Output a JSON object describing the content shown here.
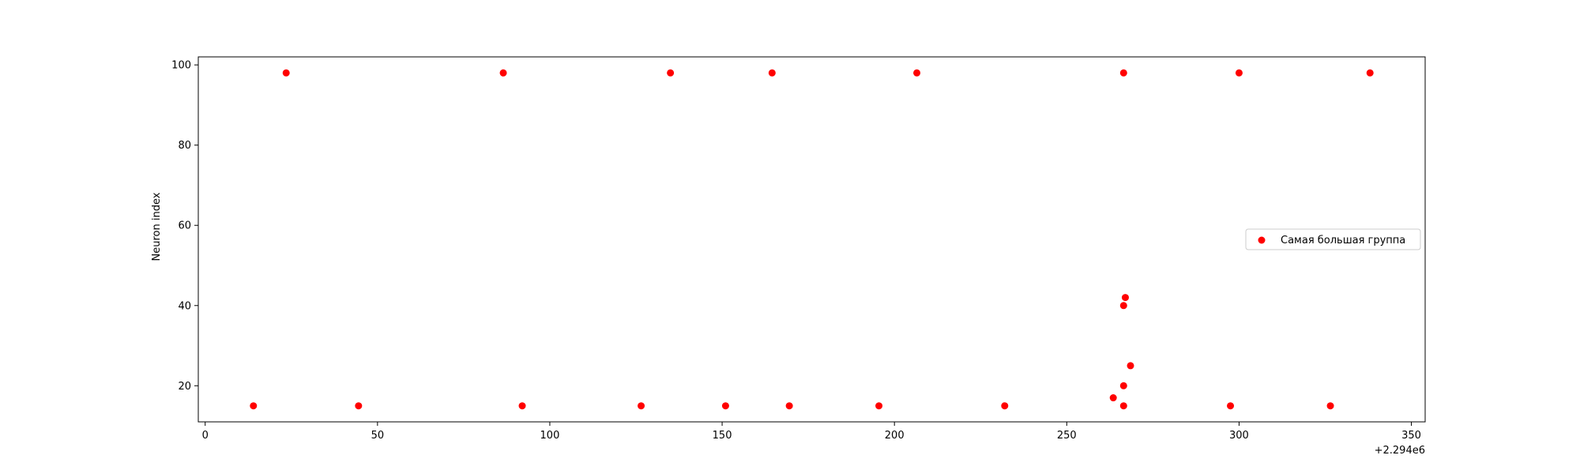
{
  "chart_data": {
    "type": "scatter",
    "title": "",
    "xlabel": "",
    "ylabel": "Neuron index",
    "x_offset_label": "+2.294e6",
    "xlim": [
      -2,
      354
    ],
    "ylim": [
      11,
      102
    ],
    "xticks": [
      0,
      50,
      100,
      150,
      200,
      250,
      300,
      350
    ],
    "yticks": [
      20,
      40,
      60,
      80,
      100
    ],
    "grid": false,
    "legend_position": "center-right",
    "series": [
      {
        "name": "Самая большая группа",
        "color": "#ff0000",
        "marker": "circle",
        "points": [
          {
            "x": 14,
            "y": 15
          },
          {
            "x": 23.5,
            "y": 98
          },
          {
            "x": 44.5,
            "y": 15
          },
          {
            "x": 86.5,
            "y": 98
          },
          {
            "x": 92,
            "y": 15
          },
          {
            "x": 126.5,
            "y": 15
          },
          {
            "x": 135,
            "y": 98
          },
          {
            "x": 151,
            "y": 15
          },
          {
            "x": 164.5,
            "y": 98
          },
          {
            "x": 169.5,
            "y": 15
          },
          {
            "x": 195.5,
            "y": 15
          },
          {
            "x": 206.5,
            "y": 98
          },
          {
            "x": 232,
            "y": 15
          },
          {
            "x": 263.5,
            "y": 17
          },
          {
            "x": 266.5,
            "y": 15
          },
          {
            "x": 266.5,
            "y": 20
          },
          {
            "x": 266.5,
            "y": 40
          },
          {
            "x": 266.5,
            "y": 98
          },
          {
            "x": 267,
            "y": 42
          },
          {
            "x": 268.5,
            "y": 25
          },
          {
            "x": 297.5,
            "y": 15
          },
          {
            "x": 300,
            "y": 98
          },
          {
            "x": 326.5,
            "y": 15
          },
          {
            "x": 338,
            "y": 98
          }
        ]
      }
    ]
  }
}
